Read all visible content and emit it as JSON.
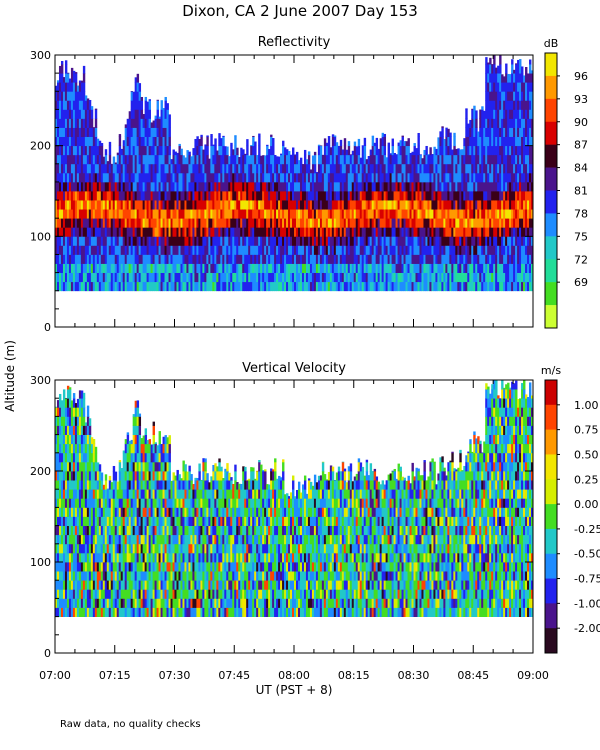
{
  "figure": {
    "title": "Dixon, CA  2 June 2007  Day 153",
    "ylabel": "Altitude (m)",
    "xlabel": "UT  (PST + 8)",
    "note": "Raw data, no quality checks"
  },
  "chart_data": [
    {
      "type": "heatmap",
      "title": "Reflectivity",
      "xlabel": "UT  (PST + 8)",
      "ylabel": "Altitude (m)",
      "x_tick_labels": [
        "07:00",
        "07:15",
        "07:30",
        "07:45",
        "08:00",
        "08:15",
        "08:30",
        "08:45",
        "09:00"
      ],
      "x_range": [
        "07:00",
        "09:00"
      ],
      "y_ticks": [
        0,
        100,
        200,
        300
      ],
      "ylim": [
        0,
        300
      ],
      "colorbar": {
        "units": "dB",
        "tick_labels": [
          "96",
          "93",
          "90",
          "87",
          "84",
          "81",
          "78",
          "75",
          "72",
          "69"
        ],
        "colors": [
          "#f2e600",
          "#ff9900",
          "#ff4400",
          "#d80000",
          "#3a0018",
          "#4a148c",
          "#2222ee",
          "#1e8cff",
          "#22c8c8",
          "#22dd99",
          "#44dd22",
          "#ccff33"
        ]
      },
      "data_altitude_range_m": [
        40,
        300
      ],
      "description_values": "Strongest echo (87-96 dB) in a layer near 110-140 m; weaker 75-84 dB elsewhere"
    },
    {
      "type": "heatmap",
      "title": "Vertical Velocity",
      "xlabel": "UT  (PST + 8)",
      "ylabel": "Altitude (m)",
      "x_tick_labels": [
        "07:00",
        "07:15",
        "07:30",
        "07:45",
        "08:00",
        "08:15",
        "08:30",
        "08:45",
        "09:00"
      ],
      "x_range": [
        "07:00",
        "09:00"
      ],
      "y_ticks": [
        0,
        100,
        200,
        300
      ],
      "ylim": [
        0,
        300
      ],
      "colorbar": {
        "units": "m/s",
        "tick_labels": [
          "1.00",
          "0.75",
          "0.50",
          "0.25",
          "0.00",
          "-0.25",
          "-0.50",
          "-0.75",
          "-1.00",
          "-2.00"
        ],
        "colors": [
          "#cc0000",
          "#ff4400",
          "#ff9900",
          "#f2e600",
          "#d6ee00",
          "#44dd22",
          "#22c8c8",
          "#1e8cff",
          "#2222ee",
          "#4a148c",
          "#2a0a20"
        ]
      },
      "data_altitude_range_m": [
        40,
        300
      ]
    }
  ]
}
